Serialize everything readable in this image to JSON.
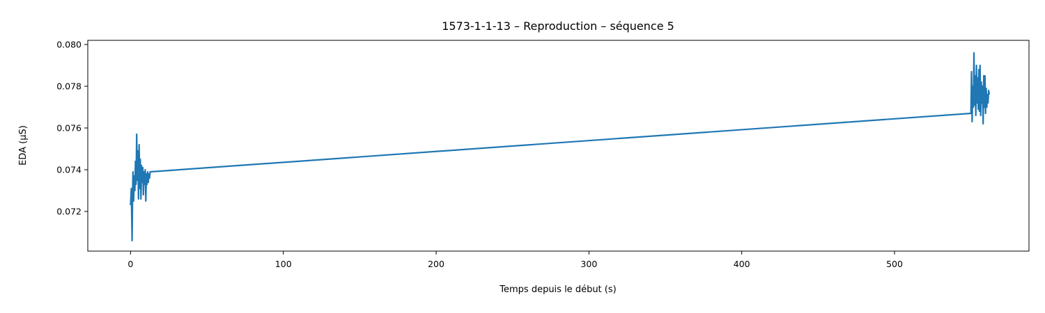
{
  "chart_data": {
    "type": "line",
    "title": "1573-1-1-13 – Reproduction – séquence 5",
    "xlabel": "Temps depuis le début (s)",
    "ylabel": "EDA (µS)",
    "xlim": [
      -28,
      588
    ],
    "ylim": [
      0.0701,
      0.0802
    ],
    "xticks": [
      0,
      100,
      200,
      300,
      400,
      500
    ],
    "yticks": [
      0.072,
      0.074,
      0.076,
      0.078,
      0.08
    ],
    "ytick_labels": [
      "0.072",
      "0.074",
      "0.076",
      "0.078",
      "0.080"
    ],
    "grid": false,
    "legend": "none",
    "line_color": "#1f77b4",
    "series": [
      {
        "x": [
          0.0,
          0.5,
          1.0,
          1.3,
          1.6,
          2.0,
          2.4,
          2.8,
          3.2,
          3.6,
          4.0,
          4.4,
          4.8,
          5.2,
          5.6,
          6.0,
          6.4,
          6.8,
          7.2,
          7.6,
          8.0,
          8.4,
          8.8,
          9.2,
          9.6,
          10.0,
          10.4,
          10.8,
          11.2,
          11.6,
          12.0,
          12.4,
          12.8,
          13.0,
          550.0,
          550.4,
          550.8,
          551.2,
          551.6,
          552.0,
          552.4,
          552.8,
          553.2,
          553.6,
          554.0,
          554.4,
          554.8,
          555.2,
          555.6,
          556.0,
          556.4,
          556.8,
          557.2,
          557.6,
          558.0,
          558.4,
          558.8,
          559.2,
          559.6,
          560.0,
          560.4,
          560.8,
          561.2,
          561.6,
          562.0
        ],
        "y": [
          0.0723,
          0.0731,
          0.0706,
          0.0728,
          0.0739,
          0.0725,
          0.0737,
          0.073,
          0.0744,
          0.0733,
          0.0757,
          0.0735,
          0.0749,
          0.0726,
          0.0752,
          0.0731,
          0.0745,
          0.0726,
          0.0742,
          0.0734,
          0.0741,
          0.0728,
          0.0739,
          0.0733,
          0.074,
          0.0725,
          0.0738,
          0.0733,
          0.0739,
          0.0734,
          0.0738,
          0.0736,
          0.0739,
          0.0739,
          0.0767,
          0.0787,
          0.0763,
          0.078,
          0.077,
          0.0796,
          0.0771,
          0.0785,
          0.0766,
          0.079,
          0.0772,
          0.0784,
          0.0769,
          0.0788,
          0.0768,
          0.079,
          0.0766,
          0.0782,
          0.0772,
          0.078,
          0.0762,
          0.0785,
          0.077,
          0.0785,
          0.0767,
          0.0779,
          0.077,
          0.0776,
          0.0772,
          0.0778,
          0.0776
        ]
      }
    ]
  }
}
